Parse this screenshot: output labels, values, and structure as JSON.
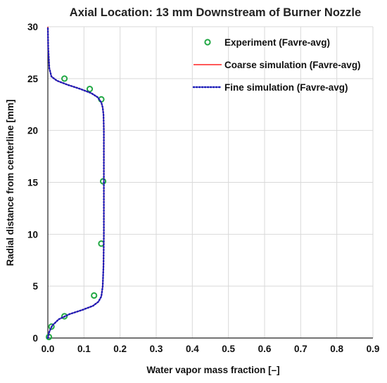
{
  "chart_data": {
    "type": "line",
    "title": "Axial Location: 13 mm Downstream of Burner Nozzle",
    "xlabel": "Water vapor mass fraction [–]",
    "ylabel": "Radial distance from centerline [mm]",
    "xlim": [
      0,
      0.9
    ],
    "ylim": [
      0,
      30
    ],
    "x_ticks": [
      "0.0",
      "0.1",
      "0.2",
      "0.3",
      "0.4",
      "0.5",
      "0.6",
      "0.7",
      "0.8",
      "0.9"
    ],
    "y_ticks": [
      "0",
      "5",
      "10",
      "15",
      "20",
      "25",
      "30"
    ],
    "grid": true,
    "legend_position": "top-right",
    "colors": {
      "experiment": "#22a845",
      "coarse": "#ff2020",
      "fine": "#1c1cb8"
    },
    "series": [
      {
        "name": "Experiment (Favre-avg)",
        "style": "markers",
        "x": [
          0.003,
          0.01,
          0.046,
          0.128,
          0.148,
          0.153,
          0.148,
          0.116,
          0.046
        ],
        "y": [
          0.1,
          1.1,
          2.1,
          4.1,
          9.1,
          15.1,
          23.0,
          24.0,
          25.0
        ]
      },
      {
        "name": "Coarse simulation (Favre-avg)",
        "style": "solid",
        "x": [
          0.0,
          0.004,
          0.012,
          0.03,
          0.06,
          0.095,
          0.125,
          0.14,
          0.148,
          0.152,
          0.154,
          0.155,
          0.155,
          0.155,
          0.154,
          0.152,
          0.148,
          0.138,
          0.12,
          0.09,
          0.055,
          0.025,
          0.01,
          0.004,
          0.001,
          0.0
        ],
        "y": [
          0.0,
          0.6,
          1.2,
          1.8,
          2.3,
          2.7,
          3.1,
          3.5,
          4.0,
          5.0,
          7.0,
          10.0,
          15.0,
          20.0,
          21.5,
          22.2,
          22.7,
          23.2,
          23.6,
          24.0,
          24.4,
          24.8,
          25.2,
          26.0,
          28.0,
          30.0
        ]
      },
      {
        "name": "Fine simulation (Favre-avg)",
        "style": "dotted",
        "x": [
          0.0,
          0.004,
          0.012,
          0.03,
          0.06,
          0.095,
          0.125,
          0.14,
          0.148,
          0.152,
          0.154,
          0.155,
          0.155,
          0.155,
          0.154,
          0.152,
          0.148,
          0.138,
          0.12,
          0.09,
          0.055,
          0.025,
          0.01,
          0.004,
          0.001,
          0.0
        ],
        "y": [
          0.0,
          0.6,
          1.2,
          1.8,
          2.3,
          2.7,
          3.1,
          3.5,
          4.0,
          5.0,
          7.0,
          10.0,
          15.0,
          20.0,
          21.5,
          22.2,
          22.7,
          23.2,
          23.6,
          24.0,
          24.4,
          24.8,
          25.2,
          26.0,
          28.0,
          30.0
        ]
      }
    ]
  }
}
